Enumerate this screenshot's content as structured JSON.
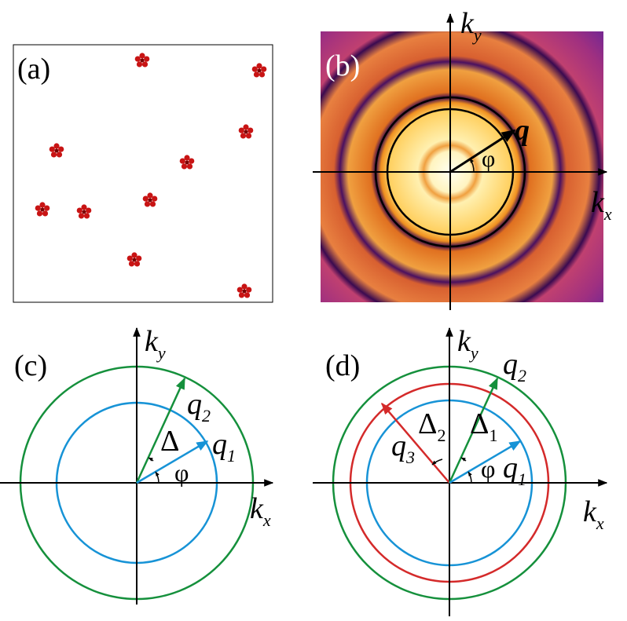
{
  "panel_a": {
    "label": "(a)"
  },
  "panel_b": {
    "label": "(b)",
    "ky": {
      "main": "k",
      "sub": "y"
    },
    "kx": {
      "main": "k",
      "sub": "x"
    },
    "q": "q",
    "phi": "φ"
  },
  "panel_c": {
    "label": "(c)",
    "ky": {
      "main": "k",
      "sub": "y"
    },
    "kx": {
      "main": "k",
      "sub": "x"
    },
    "q1": {
      "main": "q",
      "sub": "1"
    },
    "q2": {
      "main": "q",
      "sub": "2"
    },
    "delta": "Δ",
    "phi": "φ"
  },
  "panel_d": {
    "label": "(d)",
    "ky": {
      "main": "k",
      "sub": "y"
    },
    "kx": {
      "main": "k",
      "sub": "x"
    },
    "q1": {
      "main": "q",
      "sub": "1"
    },
    "q2": {
      "main": "q",
      "sub": "2"
    },
    "q3": {
      "main": "q",
      "sub": "3"
    },
    "delta1": {
      "main": "Δ",
      "sub": "1"
    },
    "delta2": {
      "main": "Δ",
      "sub": "2"
    },
    "phi": "φ"
  }
}
